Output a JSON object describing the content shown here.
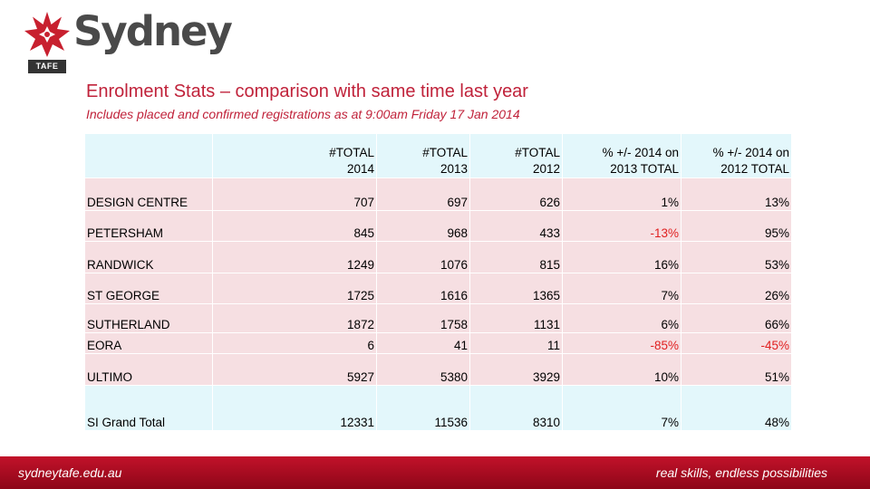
{
  "logo": {
    "wordmark": "Sydney",
    "badge": "TAFE"
  },
  "heading": {
    "title": "Enrolment Stats – comparison with same time last year",
    "subtitle": "Includes placed and confirmed registrations as at 9:00am Friday 17 Jan 2014"
  },
  "table": {
    "headers": [
      "",
      [
        "#TOTAL",
        "2014"
      ],
      [
        "#TOTAL",
        "2013"
      ],
      [
        "#TOTAL",
        "2012"
      ],
      [
        "% +/- 2014 on",
        "2013 TOTAL"
      ],
      [
        "% +/- 2014 on",
        "2012 TOTAL"
      ]
    ],
    "rows": [
      [
        "DESIGN CENTRE",
        "707",
        "697",
        "626",
        "1%",
        "13%"
      ],
      [
        "PETERSHAM",
        "845",
        "968",
        "433",
        "-13%",
        "95%"
      ],
      [
        "RANDWICK",
        "1249",
        "1076",
        "815",
        "16%",
        "53%"
      ],
      [
        "ST GEORGE",
        "1725",
        "1616",
        "1365",
        "7%",
        "26%"
      ],
      [
        "SUTHERLAND",
        "1872",
        "1758",
        "1131",
        "6%",
        "66%"
      ],
      [
        "EORA",
        "6",
        "41",
        "11",
        "-85%",
        "-45%"
      ],
      [
        "ULTIMO",
        "5927",
        "5380",
        "3929",
        "10%",
        "51%"
      ]
    ],
    "total": [
      "SI Grand Total",
      "12331",
      "11536",
      "8310",
      "7%",
      "48%"
    ]
  },
  "footer": {
    "left": "sydneytafe.edu.au",
    "right": "real skills, endless possibilities"
  },
  "colors": {
    "brand_red": "#c0223a",
    "header_fill": "#e3f7fb",
    "row_fill": "#f6dfe2",
    "negative": "#e02020"
  }
}
